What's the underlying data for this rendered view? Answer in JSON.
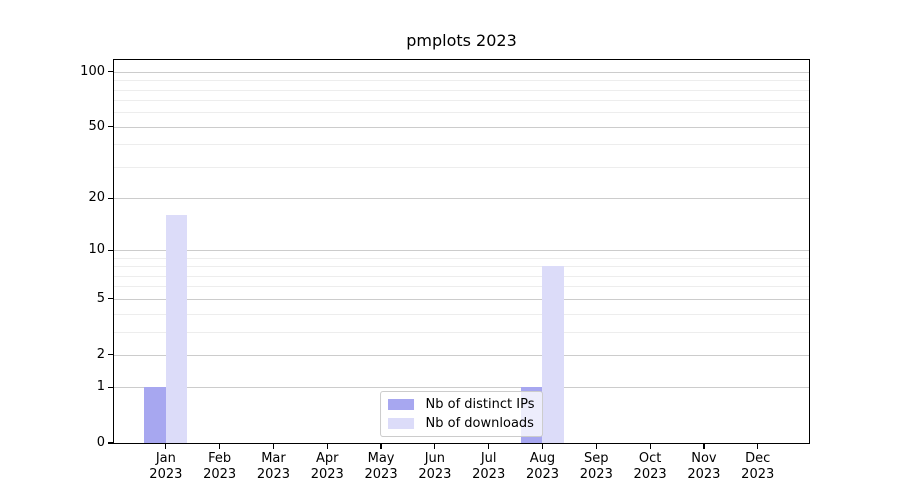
{
  "chart_data": {
    "type": "bar",
    "title": "pmplots 2023",
    "categories": [
      "Jan",
      "Feb",
      "Mar",
      "Apr",
      "May",
      "Jun",
      "Jul",
      "Aug",
      "Sep",
      "Oct",
      "Nov",
      "Dec"
    ],
    "category_year": "2023",
    "series": [
      {
        "name": "Nb of distinct IPs",
        "color": "#a7a7f0",
        "values": [
          1,
          0,
          0,
          0,
          0,
          0,
          0,
          1,
          0,
          0,
          0,
          0
        ]
      },
      {
        "name": "Nb of downloads",
        "color": "#dcdcf9",
        "values": [
          16,
          0,
          0,
          0,
          0,
          0,
          0,
          8,
          0,
          0,
          0,
          0
        ]
      }
    ],
    "xlabel": "",
    "ylabel": "",
    "y_scale": "log1p",
    "y_major_ticks": [
      0,
      1,
      2,
      5,
      10,
      20,
      50,
      100
    ],
    "y_minor_ticks": [
      3,
      4,
      6,
      7,
      8,
      9,
      30,
      40,
      60,
      70,
      80,
      90
    ],
    "ylim": [
      0,
      116
    ],
    "grid": "horizontal",
    "legend_position": "lower center"
  },
  "colors": {
    "grid_major": "#cccccc",
    "grid_minor": "#ededed",
    "axis": "#000000",
    "legend_border": "#cccccc",
    "background": "#ffffff"
  }
}
